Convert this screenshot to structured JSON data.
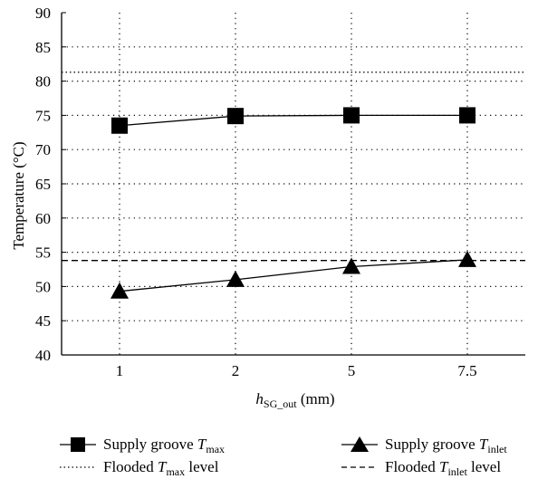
{
  "chart_data": {
    "type": "line",
    "categories": [
      "1",
      "2",
      "5",
      "7.5"
    ],
    "ylim": [
      40,
      90
    ],
    "yticks": [
      40,
      45,
      50,
      55,
      60,
      65,
      70,
      75,
      80,
      85,
      90
    ],
    "grid": true,
    "ylabel": "Temperature (°C)",
    "xlabel": {
      "main": "h",
      "sub": "SG_out",
      "unit": " (mm)"
    },
    "series": [
      {
        "key": "tmax",
        "marker": "square",
        "values": [
          73.5,
          74.9,
          75.0,
          75.0
        ]
      },
      {
        "key": "tinlet",
        "marker": "triangle",
        "values": [
          49.3,
          51.0,
          52.9,
          53.9
        ]
      }
    ],
    "reference_lines": [
      {
        "key": "flooded_tmax",
        "style": "dotted",
        "value": 81.3
      },
      {
        "key": "flooded_tinlet",
        "style": "dashed",
        "value": 53.8
      }
    ],
    "legend": {
      "placement": "bottom",
      "items": [
        {
          "prefix": "Supply groove ",
          "var": "T",
          "sub": "max",
          "suffix": "",
          "symbol": "square-line"
        },
        {
          "prefix": "Supply groove ",
          "var": "T",
          "sub": "inlet",
          "suffix": "",
          "symbol": "triangle-line"
        },
        {
          "prefix": "Flooded ",
          "var": "T",
          "sub": "max",
          "suffix": " level",
          "symbol": "dotted-line"
        },
        {
          "prefix": "Flooded ",
          "var": "T",
          "sub": "inlet",
          "suffix": " level",
          "symbol": "dashed-line"
        }
      ]
    }
  }
}
